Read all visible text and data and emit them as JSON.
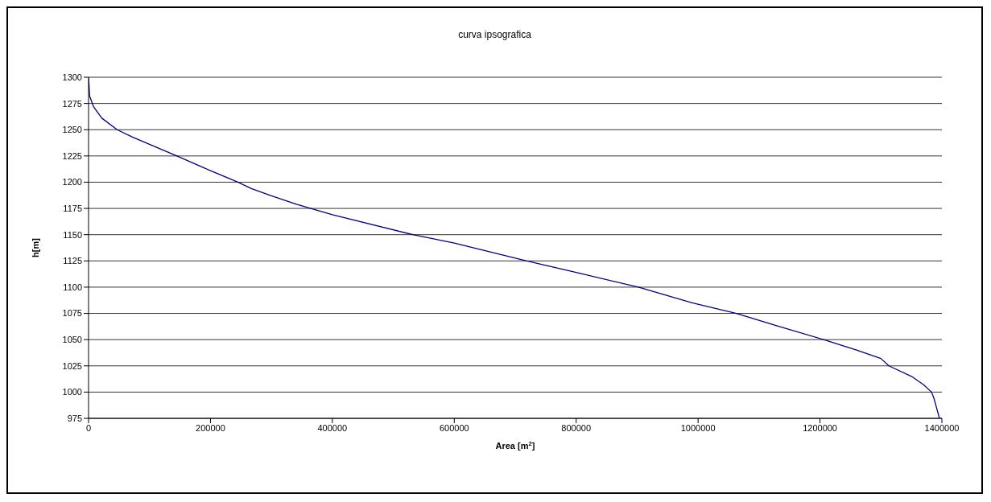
{
  "chart_data": {
    "type": "line",
    "title": "curva ipsografica",
    "xlabel": "Area [m$^{2}$]",
    "ylabel": "h[m]",
    "x": [
      0,
      1800,
      8200,
      21800,
      47000,
      72000,
      145000,
      200000,
      245000,
      267000,
      300000,
      341000,
      400000,
      532000,
      600000,
      719000,
      800000,
      902000,
      990000,
      1063000,
      1130000,
      1206000,
      1260000,
      1300000,
      1313000,
      1350000,
      1370000,
      1383000,
      1387000,
      1396000
    ],
    "series": [
      {
        "color": "#000080",
        "values": [
          1300,
          1282,
          1272,
          1261,
          1250,
          1243,
          1225,
          1211,
          1200,
          1194,
          1187,
          1179,
          1169,
          1150,
          1142,
          1125,
          1114,
          1100,
          1085,
          1075,
          1063,
          1050,
          1040,
          1032,
          1025,
          1015,
          1007,
          1000,
          994,
          975
        ]
      }
    ],
    "xlim": [
      0,
      1400000
    ],
    "xticks": [
      0,
      200000,
      400000,
      600000,
      800000,
      1000000,
      1200000,
      1400000
    ],
    "ylim": [
      975,
      1300
    ],
    "yticks": [
      975,
      1000,
      1025,
      1050,
      1075,
      1100,
      1125,
      1150,
      1175,
      1200,
      1225,
      1250,
      1275,
      1300
    ],
    "grid": "y",
    "legend": false,
    "marker": "none",
    "line_style": "solid"
  }
}
